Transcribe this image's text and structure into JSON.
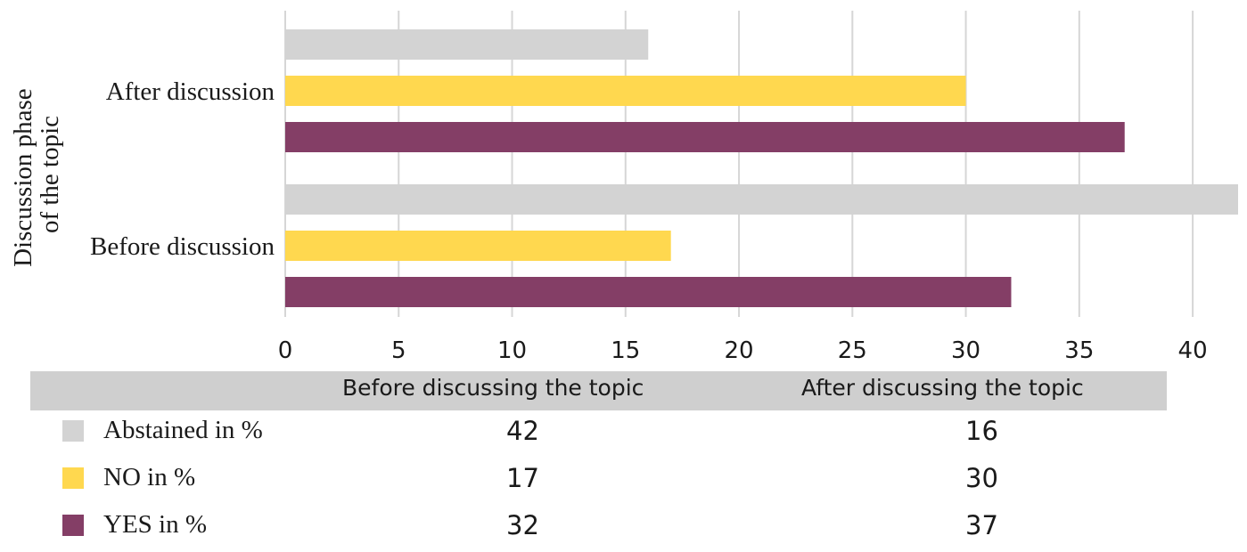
{
  "chart_data": {
    "type": "bar",
    "orientation": "horizontal",
    "ylabel": "Discussion phase of the topic",
    "ylabel_lines": [
      "Discussion phase",
      "of the topic"
    ],
    "categories": [
      "After discussion",
      "Before discussion"
    ],
    "series": [
      {
        "name": "Abstained in %",
        "color": "#d3d3d3",
        "values": [
          16,
          42
        ]
      },
      {
        "name": "NO in %",
        "color": "#ffd84f",
        "values": [
          30,
          17
        ]
      },
      {
        "name": "YES in %",
        "color": "#843e66",
        "values": [
          37,
          32
        ]
      }
    ],
    "xlim": [
      0,
      42
    ],
    "xticks": [
      0,
      5,
      10,
      15,
      20,
      25,
      30,
      35,
      40
    ],
    "grid": true,
    "legend": "table-below"
  },
  "table": {
    "headers": [
      "Before discussing the topic",
      "After discussing the topic"
    ],
    "rows": [
      {
        "label": "Abstained in %",
        "color": "#d3d3d3",
        "values": [
          "42",
          "16"
        ]
      },
      {
        "label": "NO in %",
        "color": "#ffd84f",
        "values": [
          "17",
          "30"
        ]
      },
      {
        "label": "YES in %",
        "color": "#843e66",
        "values": [
          "32",
          "37"
        ]
      }
    ]
  }
}
